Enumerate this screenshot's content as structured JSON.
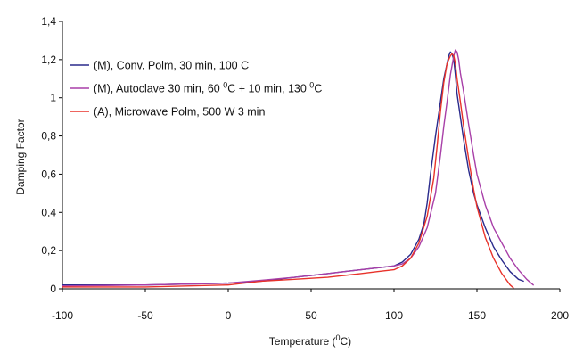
{
  "chart_data": {
    "type": "line",
    "xlabel": "Temperature (°C)",
    "xlabel_parts": {
      "prefix": "Temperature (",
      "sup": "0",
      "suffix": "C)"
    },
    "ylabel": "Damping Factor",
    "xlim": [
      -100,
      200
    ],
    "ylim": [
      0,
      1.4
    ],
    "x_ticks": [
      -100,
      -50,
      0,
      50,
      100,
      150,
      200
    ],
    "y_ticks": [
      0,
      0.2,
      0.4,
      0.6,
      0.8,
      1,
      1.2,
      1.4
    ],
    "y_tick_labels": [
      "0",
      "0,2",
      "0,4",
      "0,6",
      "0,8",
      "1",
      "1,2",
      "1,4"
    ],
    "grid": false,
    "legend_placement": "top-left",
    "series": [
      {
        "name": "(M), Conv. Polm, 30 min, 100 C",
        "name_parts": [
          {
            "text": "(M), Conv. Polm, 30 min, 100 C",
            "sup": false
          }
        ],
        "color": "#2a2a8c",
        "x": [
          -100,
          -50,
          0,
          20,
          40,
          60,
          70,
          80,
          90,
          100,
          105,
          110,
          115,
          118,
          120,
          122,
          125,
          128,
          130,
          132,
          133,
          134,
          135,
          136,
          137,
          138,
          140,
          142,
          145,
          148,
          150,
          155,
          160,
          165,
          170,
          175,
          178
        ],
        "y": [
          0.02,
          0.02,
          0.03,
          0.04,
          0.06,
          0.08,
          0.09,
          0.1,
          0.11,
          0.12,
          0.14,
          0.18,
          0.26,
          0.34,
          0.45,
          0.6,
          0.8,
          0.98,
          1.1,
          1.18,
          1.22,
          1.24,
          1.23,
          1.2,
          1.12,
          1.02,
          0.9,
          0.78,
          0.62,
          0.5,
          0.44,
          0.32,
          0.22,
          0.15,
          0.09,
          0.05,
          0.04
        ]
      },
      {
        "name": "(M), Autoclave 30 min, 60 0C + 10 min, 130 0C",
        "name_parts": [
          {
            "text": "(M), Autoclave 30 min, 60 ",
            "sup": false
          },
          {
            "text": "0",
            "sup": true
          },
          {
            "text": "C + 10 min, 130 ",
            "sup": false
          },
          {
            "text": "0",
            "sup": true
          },
          {
            "text": "C",
            "sup": false
          }
        ],
        "color": "#a83fa8",
        "x": [
          -100,
          -50,
          0,
          20,
          40,
          60,
          70,
          80,
          90,
          100,
          105,
          110,
          115,
          120,
          125,
          128,
          130,
          132,
          134,
          136,
          137,
          138,
          139,
          140,
          142,
          145,
          148,
          150,
          155,
          160,
          165,
          170,
          175,
          180,
          184
        ],
        "y": [
          0.015,
          0.02,
          0.03,
          0.045,
          0.06,
          0.08,
          0.09,
          0.1,
          0.11,
          0.12,
          0.13,
          0.16,
          0.22,
          0.32,
          0.5,
          0.7,
          0.85,
          0.98,
          1.12,
          1.22,
          1.25,
          1.24,
          1.2,
          1.13,
          1.03,
          0.86,
          0.7,
          0.6,
          0.44,
          0.32,
          0.24,
          0.16,
          0.1,
          0.05,
          0.02
        ]
      },
      {
        "name": "(A), Microwave Polm, 500 W 3 min",
        "name_parts": [
          {
            "text": "(A), Microwave Polm, 500 W 3 min",
            "sup": false
          }
        ],
        "color": "#e8322a",
        "x": [
          -100,
          -50,
          0,
          20,
          40,
          60,
          70,
          80,
          90,
          100,
          105,
          110,
          115,
          120,
          124,
          126,
          128,
          130,
          132,
          134,
          135,
          136,
          137,
          138,
          140,
          142,
          145,
          148,
          150,
          155,
          160,
          165,
          170,
          172
        ],
        "y": [
          0.01,
          0.01,
          0.02,
          0.04,
          0.05,
          0.06,
          0.07,
          0.08,
          0.09,
          0.1,
          0.12,
          0.16,
          0.24,
          0.38,
          0.58,
          0.75,
          0.93,
          1.08,
          1.18,
          1.22,
          1.23,
          1.22,
          1.18,
          1.1,
          0.98,
          0.85,
          0.68,
          0.52,
          0.43,
          0.27,
          0.16,
          0.08,
          0.02,
          0.005
        ]
      }
    ]
  }
}
